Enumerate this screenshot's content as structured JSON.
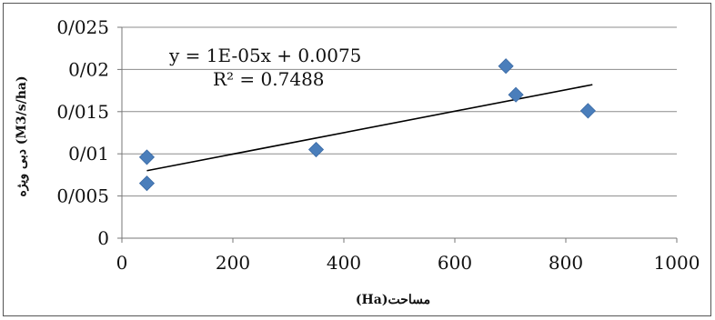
{
  "chart_data": {
    "type": "scatter",
    "xlabel": "مساحت(Ha)",
    "ylabel": "دبی ویژه (M3/s/ha)",
    "xlim": [
      0,
      1000
    ],
    "ylim": [
      0,
      0.025
    ],
    "x_ticks": [
      "0",
      "200",
      "400",
      "600",
      "800",
      "1000"
    ],
    "y_ticks": [
      "0",
      "0/005",
      "0/01",
      "0/015",
      "0/02",
      "0/025"
    ],
    "grid": "horizontal",
    "series": [
      {
        "color": "#4a7ebb",
        "marker": "diamond",
        "points": [
          {
            "x": 45,
            "y": 0.0096
          },
          {
            "x": 45,
            "y": 0.0065
          },
          {
            "x": 350,
            "y": 0.0105
          },
          {
            "x": 692,
            "y": 0.0204
          },
          {
            "x": 710,
            "y": 0.017
          },
          {
            "x": 840,
            "y": 0.0151
          }
        ]
      }
    ],
    "trendline": {
      "type": "linear",
      "x_range": [
        45,
        848
      ],
      "start_y": 0.008,
      "end_y": 0.0182,
      "color": "#000000"
    },
    "annotations": {
      "equation": "y = 1E-05x + 0.0075",
      "r2": "R² = 0.7488"
    }
  }
}
